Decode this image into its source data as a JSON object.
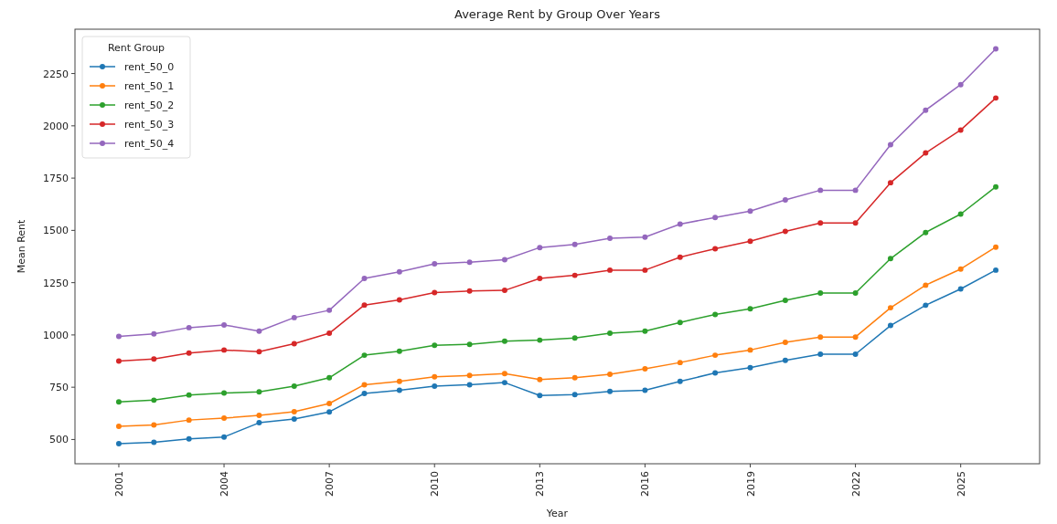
{
  "chart_data": {
    "type": "line",
    "title": "Average Rent by Group Over Years",
    "xlabel": "Year",
    "ylabel": "Mean Rent",
    "legend_title": "Rent Group",
    "legend": "top left",
    "marker": "circle",
    "line_style": "solid",
    "grid": false,
    "x": [
      2001,
      2002,
      2003,
      2004,
      2005,
      2006,
      2007,
      2008,
      2009,
      2010,
      2011,
      2012,
      2013,
      2014,
      2015,
      2016,
      2017,
      2018,
      2019,
      2020,
      2021,
      2022,
      2023,
      2024,
      2025,
      2026
    ],
    "xlim": [
      1999.75,
      2027.25
    ],
    "xticks": [
      2001,
      2004,
      2007,
      2010,
      2013,
      2016,
      2019,
      2022,
      2025
    ],
    "ylim": [
      384,
      2462
    ],
    "yticks": [
      500,
      750,
      1000,
      1250,
      1500,
      1750,
      2000,
      2250
    ],
    "series": [
      {
        "name": "rent_50_0",
        "color": "#1f77b4",
        "values": [
          480,
          487,
          503,
          512,
          580,
          598,
          632,
          720,
          735,
          755,
          762,
          772,
          710,
          715,
          730,
          735,
          778,
          818,
          843,
          878,
          908,
          908,
          1045,
          1142,
          1220,
          1310
        ]
      },
      {
        "name": "rent_50_1",
        "color": "#ff7f0e",
        "values": [
          563,
          570,
          593,
          602,
          615,
          633,
          672,
          762,
          778,
          800,
          806,
          815,
          787,
          795,
          812,
          838,
          868,
          903,
          928,
          965,
          990,
          990,
          1130,
          1238,
          1315,
          1420
        ]
      },
      {
        "name": "rent_50_2",
        "color": "#2ca02c",
        "values": [
          680,
          688,
          713,
          722,
          728,
          755,
          795,
          903,
          922,
          950,
          955,
          970,
          975,
          985,
          1008,
          1018,
          1060,
          1098,
          1125,
          1165,
          1200,
          1200,
          1365,
          1490,
          1578,
          1708
        ]
      },
      {
        "name": "rent_50_3",
        "color": "#d62728",
        "values": [
          875,
          885,
          913,
          928,
          920,
          958,
          1008,
          1143,
          1168,
          1203,
          1210,
          1213,
          1270,
          1285,
          1310,
          1310,
          1372,
          1412,
          1448,
          1495,
          1535,
          1535,
          1728,
          1870,
          1980,
          2133
        ]
      },
      {
        "name": "rent_50_4",
        "color": "#9467bd",
        "values": [
          993,
          1005,
          1035,
          1048,
          1018,
          1083,
          1118,
          1270,
          1302,
          1340,
          1348,
          1360,
          1418,
          1433,
          1462,
          1468,
          1530,
          1562,
          1592,
          1646,
          1692,
          1692,
          1910,
          2075,
          2197,
          2368
        ]
      }
    ]
  }
}
